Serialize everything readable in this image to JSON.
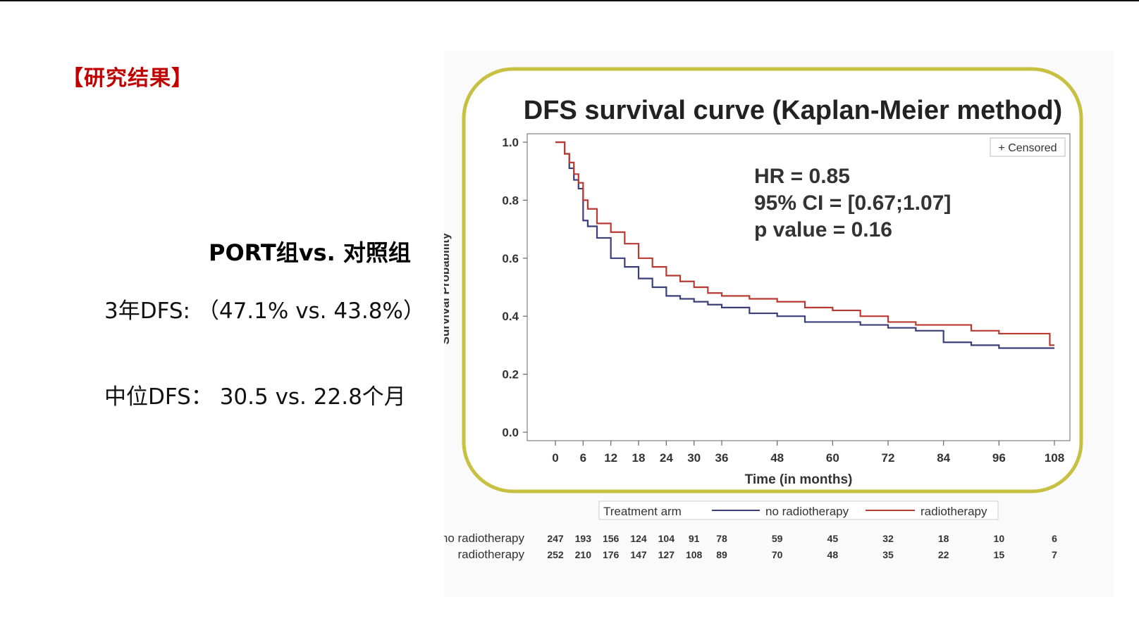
{
  "slide": {
    "section_title": "【研究结果】",
    "compare_title": "PORT组vs. 对照组",
    "stat_3yr": "3年DFS: （47.1% vs. 43.8%）",
    "stat_median": "中位DFS： 30.5 vs. 22.8个月"
  },
  "colors": {
    "section_title": "#c00000",
    "frame": "#c8c040",
    "no_radiotherapy": "#3a3f7a",
    "radiotherapy": "#b83a32"
  },
  "chart_data": {
    "type": "line",
    "title": "DFS survival curve (Kaplan-Meier method)",
    "xlabel": "Time (in months)",
    "ylabel": "Survival Probability",
    "xlim": [
      0,
      108
    ],
    "ylim": [
      0,
      1
    ],
    "x_ticks": [
      0,
      6,
      12,
      18,
      24,
      30,
      36,
      48,
      60,
      72,
      84,
      96,
      108
    ],
    "x_tick_labels": [
      "0",
      "6",
      "12",
      "18",
      "24",
      "30",
      "36",
      "48",
      "60",
      "72",
      "84",
      "96",
      "108"
    ],
    "y_ticks": [
      0,
      0.2,
      0.4,
      0.6,
      0.8,
      1.0
    ],
    "y_tick_labels": [
      "0.0",
      "0.2",
      "0.4",
      "0.6",
      "0.8",
      "1.0"
    ],
    "grid": false,
    "censored_legend": "+ Censored",
    "annotations": [
      "HR = 0.85",
      "95% CI = [0.67;1.07]",
      "p value = 0.16"
    ],
    "legend_title": "Treatment arm",
    "legend_placement": "bottom",
    "series": [
      {
        "name": "no radiotherapy",
        "x": [
          0,
          2,
          3,
          4,
          5,
          6,
          7,
          9,
          12,
          15,
          18,
          21,
          24,
          27,
          30,
          33,
          36,
          42,
          48,
          54,
          60,
          66,
          72,
          78,
          84,
          90,
          96,
          102,
          108
        ],
        "y": [
          1.0,
          0.96,
          0.91,
          0.87,
          0.84,
          0.73,
          0.71,
          0.67,
          0.6,
          0.57,
          0.53,
          0.5,
          0.47,
          0.46,
          0.45,
          0.44,
          0.43,
          0.41,
          0.4,
          0.38,
          0.38,
          0.37,
          0.36,
          0.35,
          0.31,
          0.3,
          0.29,
          0.29,
          0.29
        ],
        "at_risk": [
          247,
          193,
          156,
          124,
          104,
          91,
          78,
          59,
          45,
          32,
          18,
          10,
          6
        ]
      },
      {
        "name": "radiotherapy",
        "x": [
          0,
          2,
          3,
          4,
          5,
          6,
          7,
          9,
          12,
          15,
          18,
          21,
          24,
          27,
          30,
          33,
          36,
          42,
          48,
          54,
          60,
          66,
          72,
          78,
          84,
          90,
          96,
          102,
          107,
          108
        ],
        "y": [
          1.0,
          0.96,
          0.93,
          0.89,
          0.86,
          0.8,
          0.77,
          0.72,
          0.69,
          0.65,
          0.6,
          0.57,
          0.54,
          0.52,
          0.5,
          0.48,
          0.47,
          0.46,
          0.45,
          0.43,
          0.42,
          0.4,
          0.38,
          0.37,
          0.37,
          0.35,
          0.34,
          0.34,
          0.3,
          0.3
        ],
        "at_risk": [
          252,
          210,
          176,
          147,
          127,
          108,
          89,
          70,
          48,
          35,
          22,
          15,
          7
        ]
      }
    ]
  }
}
